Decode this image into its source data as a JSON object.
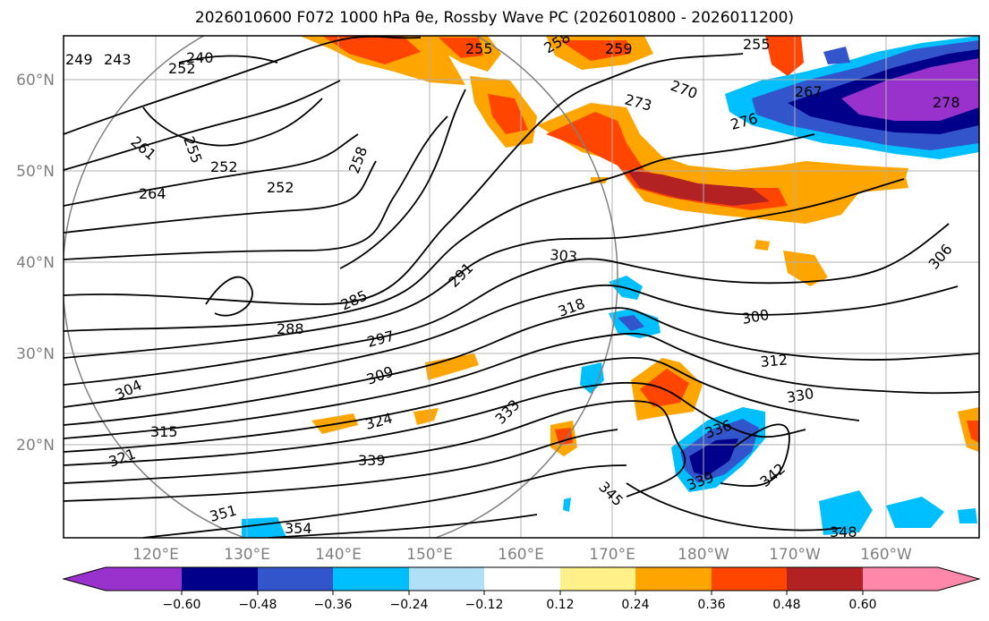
{
  "title": "2026010600 F072 1000 hPa θe, Rossby Wave PC (2026010800 - 2026011200)",
  "map": {
    "lon_labels": [
      "120°E",
      "130°E",
      "140°E",
      "150°E",
      "160°E",
      "170°E",
      "180°W",
      "170°W",
      "160°W"
    ],
    "lat_labels": [
      "60°N",
      "50°N",
      "40°N",
      "30°N",
      "20°N"
    ],
    "contour_labels": [
      "249",
      "243",
      "240",
      "252",
      "261",
      "264",
      "255",
      "252",
      "252",
      "258",
      "255",
      "258",
      "259",
      "255",
      "270",
      "267",
      "273",
      "276",
      "278",
      "285",
      "288",
      "291",
      "297",
      "303",
      "300",
      "306",
      "309",
      "318",
      "312",
      "304",
      "315",
      "321",
      "324",
      "330",
      "333",
      "336",
      "339",
      "339",
      "342",
      "345",
      "348",
      "351",
      "354"
    ],
    "colors": {
      "land_ocean_bg": "#ffffff",
      "grid": "#b0b0b0",
      "contour": "#000000",
      "tick_label": "#808080"
    }
  },
  "colorbar": {
    "labels": [
      "−0.60",
      "−0.48",
      "−0.36",
      "−0.24",
      "−0.12",
      "0.12",
      "0.24",
      "0.36",
      "0.48",
      "0.60"
    ],
    "colors": [
      "#9932cc",
      "#00008b",
      "#3355cc",
      "#00bfff",
      "#b0e0f8",
      "#ffffff",
      "#fff08a",
      "#ffa500",
      "#ff4500",
      "#b22222",
      "#ff88aa"
    ]
  }
}
